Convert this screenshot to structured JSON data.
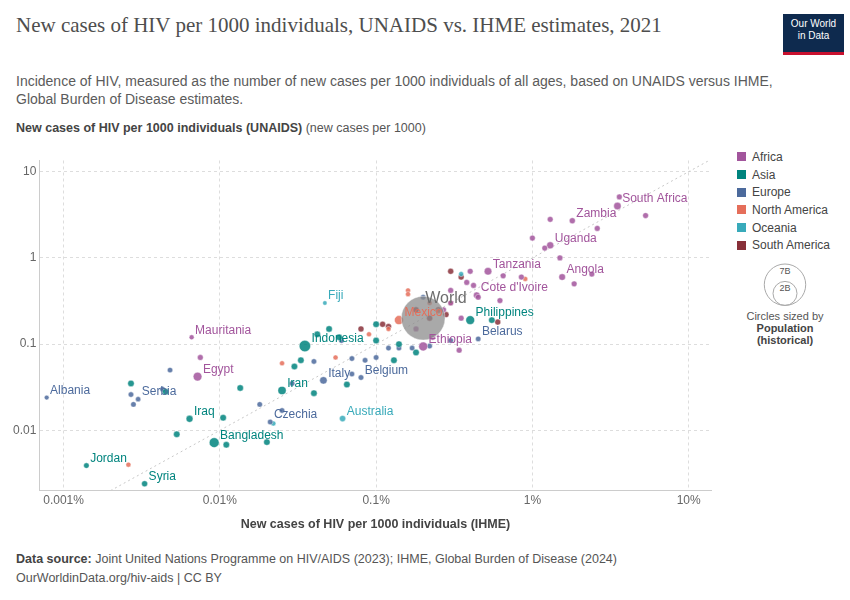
{
  "chart_data": {
    "type": "scatter",
    "title": "New cases of HIV per 1000 individuals, UNAIDS vs. IHME estimates, 2021",
    "subtitle": "Incidence of HIV, measured as the number of new cases per 1000 individuals of all ages, based on UNAIDS versus IHME, Global Burden of Disease estimates.",
    "logo": "Our World in Data",
    "x_label": "New cases of HIV per 1000 individuals (IHME)",
    "y_label": "New cases of HIV per 1000 individuals (UNAIDS)",
    "y_unit": "(new cases per 1000)",
    "source_label": "Data source:",
    "source": "Joint United Nations Programme on HIV/AIDS (2023); IHME, Global Burden of Disease (2024)",
    "url": "OurWorldinData.org/hiv-aids | CC BY",
    "log": true,
    "grid": true,
    "legend": "right",
    "xlim": [
      0.0007,
      14
    ],
    "ylim": [
      0.002,
      13.5
    ],
    "xticks": [
      {
        "value": 0.001,
        "label": "0.001%"
      },
      {
        "value": 0.01,
        "label": "0.01%"
      },
      {
        "value": 0.1,
        "label": "0.1%"
      },
      {
        "value": 1,
        "label": "1%"
      },
      {
        "value": 10,
        "label": "10%"
      }
    ],
    "yticks": [
      0.01,
      0.1,
      1,
      10
    ],
    "size_legend": {
      "title": "Circles sized by",
      "variable": "Population",
      "note": "(historical)",
      "values": [
        {
          "value": 7000000000,
          "label": "7B"
        },
        {
          "value": 2000000000,
          "label": "2B"
        }
      ]
    },
    "series": [
      {
        "type": "line",
        "line_style": "dotted",
        "color": "#c8c8c8",
        "points": [
          {
            "x": 0.002,
            "y": 0.002
          },
          {
            "x": 13.5,
            "y": 13.5
          }
        ]
      },
      {
        "color": "#8c8c8c",
        "points": [
          {
            "x": 0.2,
            "y": 0.2,
            "population": 7900000000,
            "label": "World"
          }
        ]
      },
      {
        "name": "Africa",
        "color": "#a2559c",
        "points": [
          {
            "x": 3.5,
            "y": 4.0,
            "population": 60000000,
            "label": "South Africa"
          },
          {
            "x": 1.8,
            "y": 2.7,
            "population": 20000000,
            "label": "Zambia"
          },
          {
            "x": 1.3,
            "y": 1.4,
            "population": 47000000,
            "label": "Uganda"
          },
          {
            "x": 0.52,
            "y": 0.7,
            "population": 65000000,
            "label": "Tanzania"
          },
          {
            "x": 0.44,
            "y": 0.37,
            "population": 28000000,
            "label": "Cote d'Ivoire"
          },
          {
            "x": 1.55,
            "y": 0.6,
            "population": 35000000,
            "label": "Angola"
          },
          {
            "x": 0.2,
            "y": 0.094,
            "population": 120000000,
            "label": "Ethiopia"
          },
          {
            "x": 0.0066,
            "y": 0.12,
            "population": 4600000,
            "label": "Mauritania"
          },
          {
            "x": 0.0072,
            "y": 0.042,
            "population": 110000000,
            "label": "Egypt"
          },
          {
            "x": 1.3,
            "y": 2.8,
            "population": 15000000
          },
          {
            "x": 3.6,
            "y": 5.1,
            "population": 15000000
          },
          {
            "x": 5.3,
            "y": 3.1,
            "population": 15000000
          },
          {
            "x": 2.6,
            "y": 2.2,
            "population": 15000000
          },
          {
            "x": 1.0,
            "y": 1.7,
            "population": 15000000
          },
          {
            "x": 1.2,
            "y": 1.3,
            "population": 15000000
          },
          {
            "x": 1.5,
            "y": 1.0,
            "population": 15000000
          },
          {
            "x": 2.4,
            "y": 0.65,
            "population": 15000000
          },
          {
            "x": 1.85,
            "y": 0.5,
            "population": 15000000
          },
          {
            "x": 0.85,
            "y": 0.6,
            "population": 15000000
          },
          {
            "x": 0.65,
            "y": 0.62,
            "population": 15000000
          },
          {
            "x": 0.4,
            "y": 0.7,
            "population": 15000000
          },
          {
            "x": 0.38,
            "y": 0.52,
            "population": 15000000
          },
          {
            "x": 0.42,
            "y": 0.48,
            "population": 15000000
          },
          {
            "x": 0.3,
            "y": 0.42,
            "population": 15000000
          },
          {
            "x": 0.45,
            "y": 0.35,
            "population": 15000000
          },
          {
            "x": 0.62,
            "y": 0.32,
            "population": 15000000
          },
          {
            "x": 0.3,
            "y": 0.3,
            "population": 15000000
          },
          {
            "x": 0.27,
            "y": 0.25,
            "population": 15000000
          },
          {
            "x": 0.35,
            "y": 0.2,
            "population": 15000000
          },
          {
            "x": 0.18,
            "y": 0.15,
            "population": 15000000
          },
          {
            "x": 0.23,
            "y": 0.12,
            "population": 15000000
          },
          {
            "x": 0.34,
            "y": 0.085,
            "population": 15000000
          },
          {
            "x": 0.0075,
            "y": 0.07,
            "population": 15000000
          }
        ]
      },
      {
        "name": "Asia",
        "color": "#00847e",
        "points": [
          {
            "x": 0.035,
            "y": 0.095,
            "population": 275000000,
            "label": "Indonesia"
          },
          {
            "x": 0.4,
            "y": 0.19,
            "population": 114000000,
            "label": "Philippines"
          },
          {
            "x": 0.025,
            "y": 0.029,
            "population": 88000000,
            "label": "Iran"
          },
          {
            "x": 0.0064,
            "y": 0.0136,
            "population": 43000000,
            "label": "Iraq"
          },
          {
            "x": 0.0092,
            "y": 0.0072,
            "population": 169000000,
            "label": "Bangladesh"
          },
          {
            "x": 0.0014,
            "y": 0.0039,
            "population": 11000000,
            "label": "Jordan"
          },
          {
            "x": 0.0033,
            "y": 0.0024,
            "population": 21000000,
            "label": "Syria"
          },
          {
            "x": 0.0027,
            "y": 0.035,
            "population": 30000000
          },
          {
            "x": 0.0045,
            "y": 0.028,
            "population": 30000000
          },
          {
            "x": 0.0053,
            "y": 0.009,
            "population": 30000000
          },
          {
            "x": 0.0105,
            "y": 0.014,
            "population": 30000000
          },
          {
            "x": 0.0135,
            "y": 0.031,
            "population": 30000000
          },
          {
            "x": 0.011,
            "y": 0.0068,
            "population": 30000000
          },
          {
            "x": 0.02,
            "y": 0.0073,
            "population": 30000000
          },
          {
            "x": 0.03,
            "y": 0.055,
            "population": 30000000
          },
          {
            "x": 0.042,
            "y": 0.13,
            "population": 30000000
          },
          {
            "x": 0.05,
            "y": 0.15,
            "population": 30000000
          },
          {
            "x": 0.058,
            "y": 0.12,
            "population": 30000000
          },
          {
            "x": 0.1,
            "y": 0.17,
            "population": 30000000
          },
          {
            "x": 0.1,
            "y": 0.11,
            "population": 30000000
          },
          {
            "x": 0.14,
            "y": 0.1,
            "population": 30000000
          },
          {
            "x": 0.13,
            "y": 0.065,
            "population": 30000000
          },
          {
            "x": 0.18,
            "y": 0.08,
            "population": 30000000
          },
          {
            "x": 0.55,
            "y": 0.19,
            "population": 30000000
          },
          {
            "x": 0.065,
            "y": 0.034,
            "population": 30000000
          },
          {
            "x": 0.04,
            "y": 0.027,
            "population": 30000000
          },
          {
            "x": 0.033,
            "y": 0.065,
            "population": 30000000
          }
        ]
      },
      {
        "name": "Europe",
        "color": "#4c6a9c",
        "points": [
          {
            "x": 0.00078,
            "y": 0.024,
            "population": 2800000,
            "label": "Albania"
          },
          {
            "x": 0.003,
            "y": 0.023,
            "population": 6800000,
            "label": "Serbia"
          },
          {
            "x": 0.046,
            "y": 0.038,
            "population": 59000000,
            "label": "Italy"
          },
          {
            "x": 0.08,
            "y": 0.041,
            "population": 11600000,
            "label": "Belgium"
          },
          {
            "x": 0.021,
            "y": 0.0125,
            "population": 10500000,
            "label": "Czechia"
          },
          {
            "x": 0.45,
            "y": 0.115,
            "population": 9300000,
            "label": "Belarus"
          },
          {
            "x": 0.0027,
            "y": 0.026,
            "population": 10000000
          },
          {
            "x": 0.0028,
            "y": 0.02,
            "population": 10000000
          },
          {
            "x": 0.0043,
            "y": 0.03,
            "population": 10000000
          },
          {
            "x": 0.0048,
            "y": 0.05,
            "population": 10000000
          },
          {
            "x": 0.018,
            "y": 0.02,
            "population": 10000000
          },
          {
            "x": 0.025,
            "y": 0.017,
            "population": 10000000
          },
          {
            "x": 0.029,
            "y": 0.035,
            "population": 10000000
          },
          {
            "x": 0.04,
            "y": 0.063,
            "population": 10000000
          },
          {
            "x": 0.07,
            "y": 0.068,
            "population": 10000000
          },
          {
            "x": 0.085,
            "y": 0.065,
            "population": 10000000
          },
          {
            "x": 0.1,
            "y": 0.07,
            "population": 10000000
          },
          {
            "x": 0.12,
            "y": 0.09,
            "population": 10000000
          },
          {
            "x": 0.14,
            "y": 0.09,
            "population": 10000000
          },
          {
            "x": 0.17,
            "y": 0.09,
            "population": 10000000
          },
          {
            "x": 0.22,
            "y": 0.095,
            "population": 10000000
          },
          {
            "x": 0.3,
            "y": 0.11,
            "population": 10000000
          },
          {
            "x": 0.07,
            "y": 0.045,
            "population": 10000000
          },
          {
            "x": 0.06,
            "y": 0.11,
            "population": 10000000
          },
          {
            "x": 0.2,
            "y": 0.35,
            "population": 10000000
          }
        ]
      },
      {
        "name": "North America",
        "color": "#e56e5a",
        "points": [
          {
            "x": 0.14,
            "y": 0.19,
            "population": 127000000,
            "label": "Mexico"
          },
          {
            "x": 0.0026,
            "y": 0.004,
            "population": 5000000
          },
          {
            "x": 0.025,
            "y": 0.06,
            "population": 5000000
          },
          {
            "x": 0.055,
            "y": 0.07,
            "population": 5000000
          },
          {
            "x": 0.09,
            "y": 0.13,
            "population": 5000000
          },
          {
            "x": 0.16,
            "y": 0.42,
            "population": 5000000
          },
          {
            "x": 0.16,
            "y": 0.38,
            "population": 5000000
          },
          {
            "x": 0.25,
            "y": 0.24,
            "population": 5000000
          },
          {
            "x": 0.9,
            "y": 0.57,
            "population": 5000000
          },
          {
            "x": 0.3,
            "y": 0.3,
            "population": 5000000
          },
          {
            "x": 0.22,
            "y": 0.3,
            "population": 5000000
          },
          {
            "x": 0.12,
            "y": 0.15,
            "population": 5000000
          }
        ]
      },
      {
        "name": "Oceania",
        "color": "#38aaba",
        "points": [
          {
            "x": 0.047,
            "y": 0.3,
            "population": 900000,
            "label": "Fiji"
          },
          {
            "x": 0.061,
            "y": 0.0137,
            "population": 26000000,
            "label": "Australia"
          },
          {
            "x": 0.35,
            "y": 0.65,
            "population": 5000000
          },
          {
            "x": 0.022,
            "y": 0.012,
            "population": 5000000
          }
        ]
      },
      {
        "name": "South America",
        "color": "#883039",
        "points": [
          {
            "x": 0.08,
            "y": 0.15,
            "population": 20000000
          },
          {
            "x": 0.11,
            "y": 0.17,
            "population": 20000000
          },
          {
            "x": 0.18,
            "y": 0.25,
            "population": 20000000
          },
          {
            "x": 0.25,
            "y": 0.25,
            "population": 20000000
          },
          {
            "x": 0.28,
            "y": 0.22,
            "population": 20000000
          },
          {
            "x": 0.3,
            "y": 0.7,
            "population": 20000000
          },
          {
            "x": 0.35,
            "y": 0.6,
            "population": 20000000
          },
          {
            "x": 0.22,
            "y": 0.2,
            "population": 20000000
          },
          {
            "x": 0.6,
            "y": 0.18,
            "population": 20000000
          },
          {
            "x": 0.12,
            "y": 0.16,
            "population": 20000000
          }
        ]
      }
    ]
  }
}
